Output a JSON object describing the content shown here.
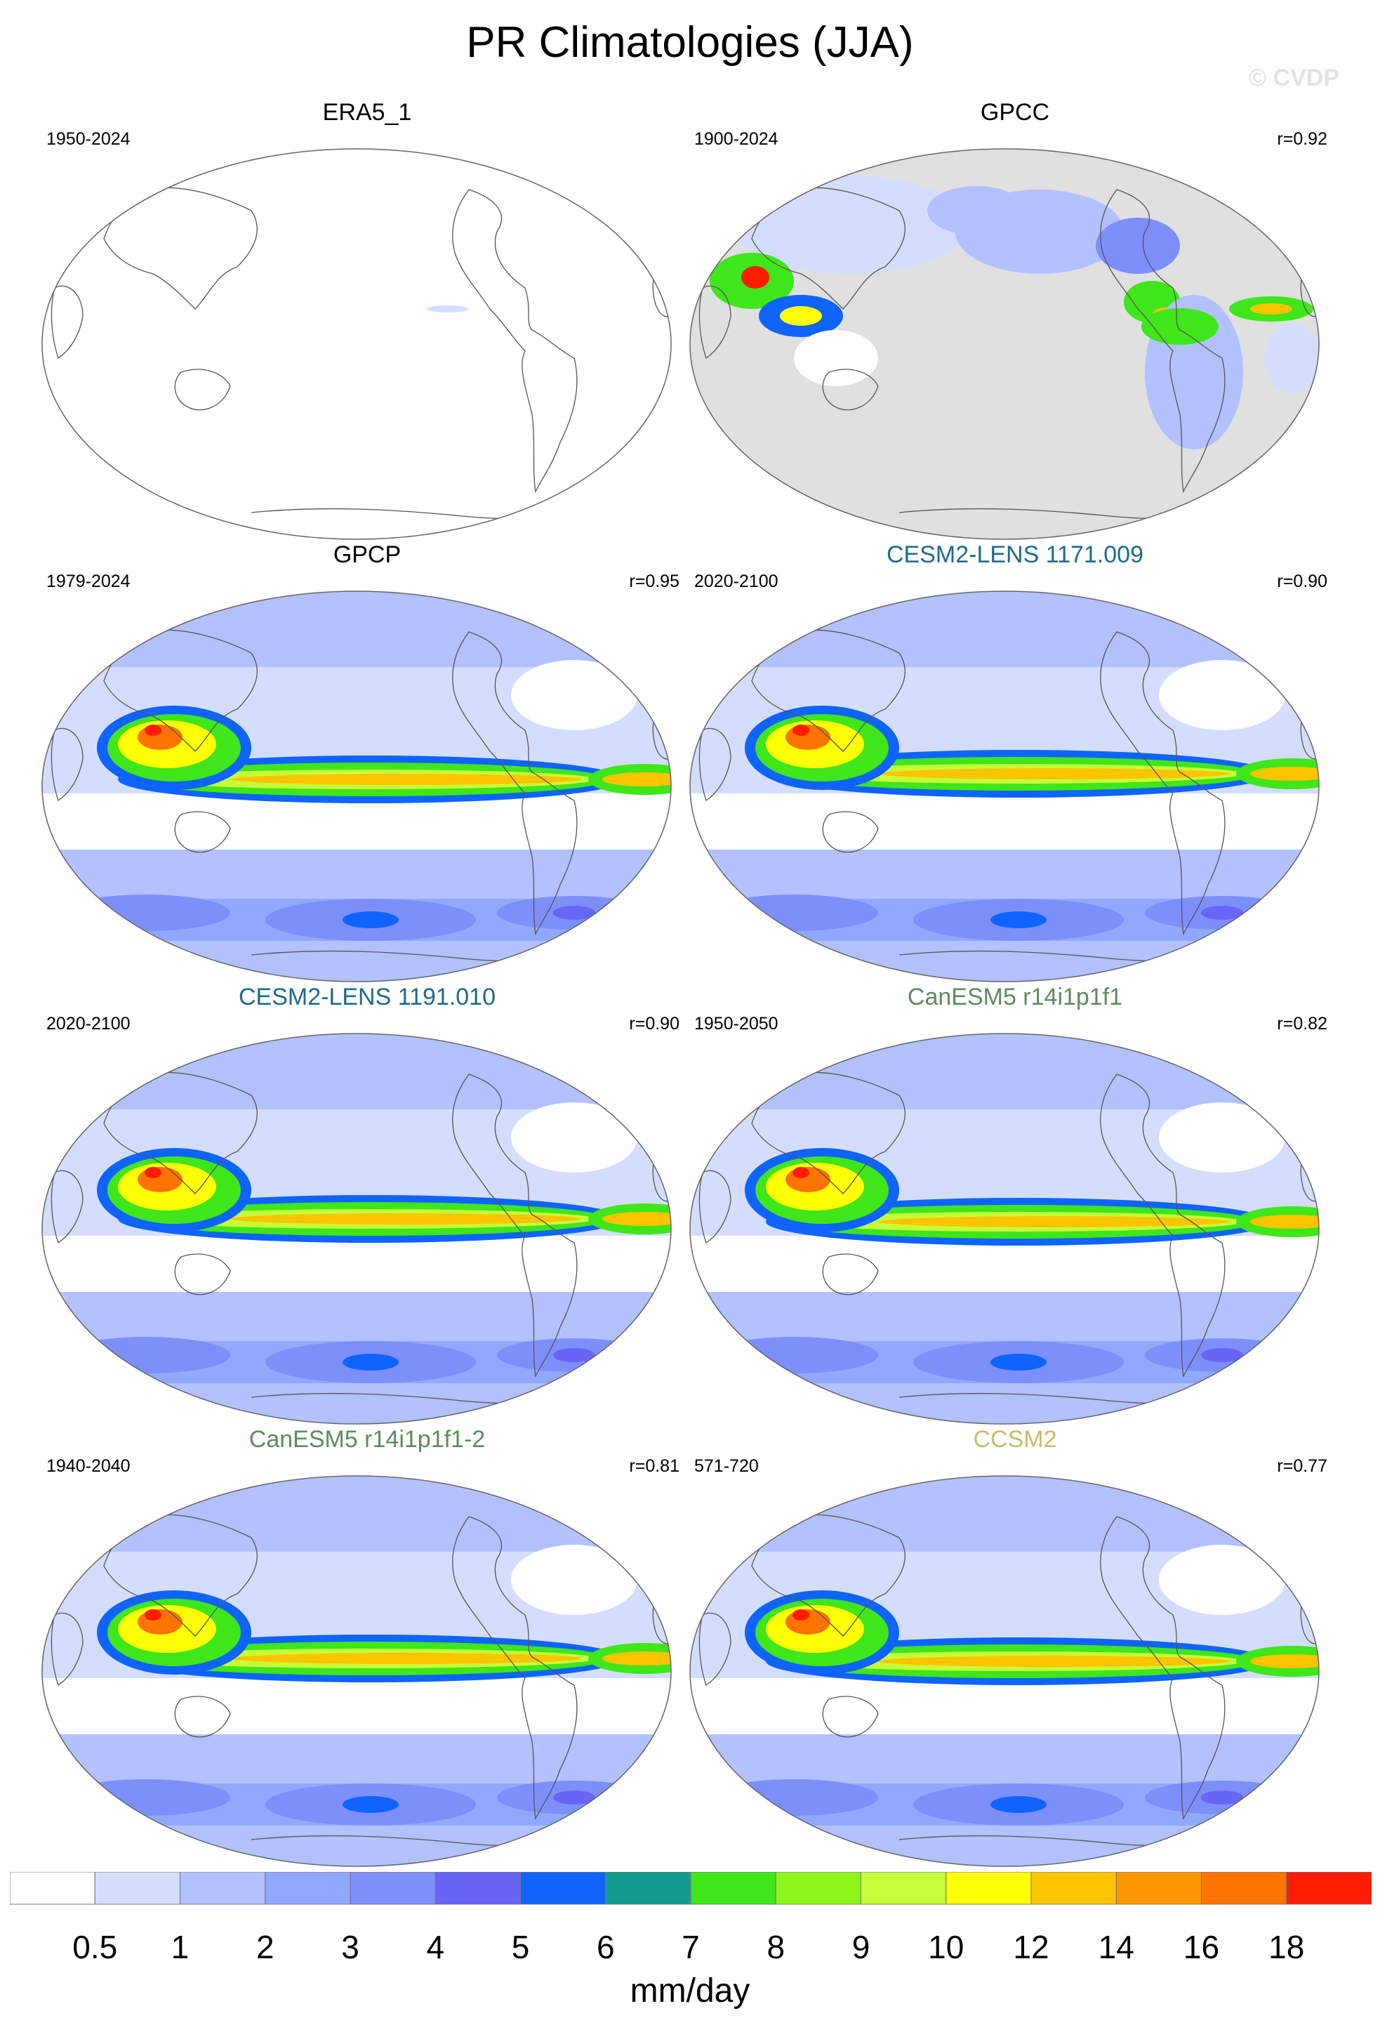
{
  "title": "PR Climatologies (JJA)",
  "watermark": "© CVDP",
  "panels": [
    {
      "title": "ERA5_1",
      "period": "1950-2024",
      "corr": "",
      "title_color": "#000000",
      "style": "blank"
    },
    {
      "title": "GPCC",
      "period": "1900-2024",
      "corr": "r=0.92",
      "title_color": "#000000",
      "style": "land"
    },
    {
      "title": "GPCP",
      "period": "1979-2024",
      "corr": "r=0.95",
      "title_color": "#000000",
      "style": "full"
    },
    {
      "title": "CESM2-LENS 1171.009",
      "period": "2020-2100",
      "corr": "r=0.90",
      "title_color": "#1d6b8a",
      "style": "full"
    },
    {
      "title": "CESM2-LENS 1191.010",
      "period": "2020-2100",
      "corr": "r=0.90",
      "title_color": "#1d6b8a",
      "style": "full"
    },
    {
      "title": "CanESM5 r14i1p1f1",
      "period": "1950-2050",
      "corr": "r=0.82",
      "title_color": "#5e8c5e",
      "style": "full"
    },
    {
      "title": "CanESM5 r14i1p1f1-2",
      "period": "1940-2040",
      "corr": "r=0.81",
      "title_color": "#5e8c5e",
      "style": "full"
    },
    {
      "title": "CCSM2",
      "period": "571-720",
      "corr": "r=0.77",
      "title_color": "#c8bd6a",
      "style": "full"
    }
  ],
  "colorbar": {
    "units": "mm/day",
    "labels": [
      "0.5",
      "1",
      "2",
      "3",
      "4",
      "5",
      "6",
      "7",
      "8",
      "9",
      "10",
      "12",
      "14",
      "16",
      "18"
    ],
    "colors": [
      "#ffffff",
      "#d5ddff",
      "#b3c1ff",
      "#90a9ff",
      "#7d8ffb",
      "#6766f7",
      "#0f64ff",
      "#139c8f",
      "#3fe61a",
      "#8ef51a",
      "#c6ff3a",
      "#ffff05",
      "#ffc400",
      "#ff9700",
      "#ff7300",
      "#ff1c00"
    ]
  }
}
